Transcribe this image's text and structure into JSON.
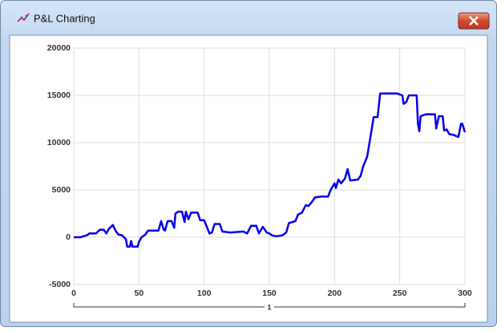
{
  "window": {
    "title": "P&L Charting"
  },
  "chart_data": {
    "type": "line",
    "x": [
      0,
      5,
      10,
      12,
      17,
      20,
      23,
      25,
      27,
      30,
      32,
      34,
      37,
      40,
      41,
      43,
      44,
      45,
      49,
      50,
      52,
      55,
      57,
      65,
      67,
      69,
      70,
      72,
      75,
      77,
      78,
      80,
      83,
      85,
      86,
      88,
      90,
      95,
      97,
      100,
      103,
      104,
      106,
      108,
      112,
      114,
      120,
      130,
      133,
      136,
      140,
      142,
      145,
      148,
      150,
      152,
      155,
      160,
      163,
      165,
      170,
      172,
      175,
      178,
      180,
      183,
      185,
      190,
      195,
      197,
      200,
      201,
      203,
      205,
      208,
      210,
      212,
      218,
      220,
      222,
      225,
      228,
      230,
      233,
      235,
      245,
      248,
      250,
      252,
      253,
      255,
      257,
      263,
      264,
      265,
      266,
      270,
      277,
      278,
      280,
      283,
      284,
      286,
      288,
      292,
      293,
      295,
      297,
      298,
      300
    ],
    "values": [
      0,
      0,
      200,
      400,
      400,
      800,
      800,
      400,
      900,
      1300,
      700,
      300,
      200,
      -200,
      -1000,
      -1000,
      -400,
      -1000,
      -1000,
      -500,
      0,
      300,
      700,
      700,
      1700,
      800,
      700,
      1700,
      1700,
      1000,
      2500,
      2700,
      2700,
      1600,
      2700,
      1900,
      2600,
      2600,
      1800,
      1800,
      800,
      400,
      500,
      1400,
      1400,
      600,
      500,
      600,
      400,
      1200,
      1200,
      400,
      1100,
      500,
      400,
      200,
      100,
      200,
      500,
      1500,
      1700,
      2400,
      2600,
      3400,
      3300,
      3800,
      4200,
      4300,
      4300,
      5000,
      5700,
      5200,
      6100,
      5700,
      6200,
      7200,
      6000,
      6100,
      6500,
      7500,
      8500,
      11000,
      12700,
      12700,
      15200,
      15200,
      15200,
      15100,
      15000,
      14100,
      14300,
      15000,
      15000,
      12000,
      11200,
      12800,
      13000,
      13000,
      11500,
      12800,
      12800,
      11300,
      11400,
      10900,
      10800,
      10700,
      10600,
      12000,
      12000,
      11100
    ],
    "color": "#0000ee",
    "xlim": [
      0,
      300
    ],
    "xticks": [
      0,
      50,
      100,
      150,
      200,
      250,
      300
    ],
    "ylim": [
      -5000,
      20000
    ],
    "yticks": [
      -5000,
      0,
      5000,
      10000,
      15000,
      20000
    ],
    "grid": true,
    "x_group_label": "1"
  }
}
